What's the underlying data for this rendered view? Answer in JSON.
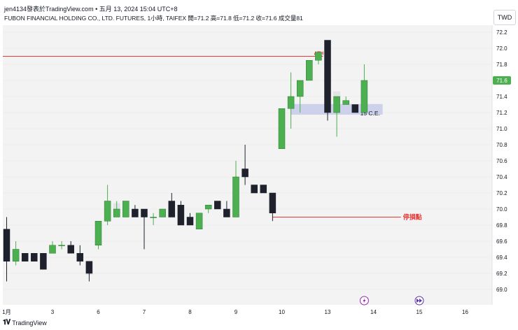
{
  "header": {
    "author_line": "jen4134發表於TradingView.com • 五月 13, 2024 15:04 UTC+8",
    "symbol_line": "FUBON FINANCIAL HOLDING CO., LTD. FUTURES, 1小時, TAIFEX  開=71.2  高=71.8  低=71.2  收=71.6  成交量81",
    "currency": "TWD"
  },
  "footer": {
    "brand": "TradingView"
  },
  "colors": {
    "up": "#4caf50",
    "down": "#1f222d",
    "volume": "#e1e3e6",
    "ath_line": "#e53935",
    "stop_line": "#e53935",
    "ce_zone": "#c5cae9",
    "bg": "#f3f3f3"
  },
  "chart_data": {
    "type": "candlestick",
    "ylim": [
      68.8,
      72.3
    ],
    "y_ticks": [
      "72.2",
      "72.0",
      "71.8",
      "71.6",
      "71.4",
      "71.2",
      "71.0",
      "70.8",
      "70.6",
      "70.4",
      "70.2",
      "70.0",
      "69.8",
      "69.6",
      "69.4",
      "69.2",
      "69.0"
    ],
    "x_labels": [
      {
        "label": "1月",
        "slot": 0
      },
      {
        "label": "3",
        "slot": 5
      },
      {
        "label": "6",
        "slot": 10
      },
      {
        "label": "7",
        "slot": 15
      },
      {
        "label": "8",
        "slot": 20
      },
      {
        "label": "9",
        "slot": 25
      },
      {
        "label": "10",
        "slot": 30
      },
      {
        "label": "13",
        "slot": 35
      },
      {
        "label": "14",
        "slot": 40
      },
      {
        "label": "15",
        "slot": 45
      },
      {
        "label": "16",
        "slot": 50
      }
    ],
    "current_price": "71.6",
    "candles": [
      {
        "o": 69.75,
        "h": 69.9,
        "l": 69.1,
        "c": 69.35
      },
      {
        "o": 69.35,
        "h": 69.6,
        "l": 69.3,
        "c": 69.5
      },
      {
        "o": 69.45,
        "h": 69.45,
        "l": 69.35,
        "c": 69.35
      },
      {
        "o": 69.45,
        "h": 69.45,
        "l": 69.35,
        "c": 69.35
      },
      {
        "o": 69.45,
        "h": 69.45,
        "l": 69.25,
        "c": 69.25
      },
      {
        "o": 69.45,
        "h": 69.6,
        "l": 69.45,
        "c": 69.55
      },
      {
        "o": 69.55,
        "h": 69.6,
        "l": 69.5,
        "c": 69.55
      },
      {
        "o": 69.55,
        "h": 69.6,
        "l": 69.45,
        "c": 69.45
      },
      {
        "o": 69.45,
        "h": 69.55,
        "l": 69.3,
        "c": 69.35
      },
      {
        "o": 69.35,
        "h": 69.35,
        "l": 69.1,
        "c": 69.2
      },
      {
        "o": 69.55,
        "h": 69.85,
        "l": 69.5,
        "c": 69.85
      },
      {
        "o": 69.85,
        "h": 70.3,
        "l": 69.8,
        "c": 70.1
      },
      {
        "o": 69.9,
        "h": 70.1,
        "l": 69.9,
        "c": 70.0
      },
      {
        "o": 69.9,
        "h": 70.1,
        "l": 69.9,
        "c": 70.1
      },
      {
        "o": 70.0,
        "h": 70.05,
        "l": 69.9,
        "c": 69.9
      },
      {
        "o": 70.0,
        "h": 70.0,
        "l": 69.5,
        "c": 69.9
      },
      {
        "o": 69.9,
        "h": 69.95,
        "l": 69.8,
        "c": 69.9
      },
      {
        "o": 69.9,
        "h": 70.0,
        "l": 69.9,
        "c": 70.0
      },
      {
        "o": 70.1,
        "h": 70.2,
        "l": 69.9,
        "c": 69.9
      },
      {
        "o": 70.05,
        "h": 70.1,
        "l": 69.8,
        "c": 69.8
      },
      {
        "o": 69.9,
        "h": 69.95,
        "l": 69.8,
        "c": 69.8
      },
      {
        "o": 69.75,
        "h": 69.95,
        "l": 69.75,
        "c": 69.95
      },
      {
        "o": 70.0,
        "h": 70.05,
        "l": 69.95,
        "c": 70.05
      },
      {
        "o": 70.1,
        "h": 70.1,
        "l": 70.0,
        "c": 70.0
      },
      {
        "o": 70.0,
        "h": 70.1,
        "l": 69.9,
        "c": 69.9
      },
      {
        "o": 69.9,
        "h": 70.6,
        "l": 69.9,
        "c": 70.4
      },
      {
        "o": 70.5,
        "h": 70.8,
        "l": 70.3,
        "c": 70.4
      },
      {
        "o": 70.3,
        "h": 70.3,
        "l": 70.2,
        "c": 70.2
      },
      {
        "o": 70.3,
        "h": 70.3,
        "l": 70.2,
        "c": 70.2
      },
      {
        "o": 70.2,
        "h": 70.2,
        "l": 69.85,
        "c": 69.95
      },
      {
        "o": 70.75,
        "h": 71.25,
        "l": 70.75,
        "c": 71.25
      },
      {
        "o": 71.25,
        "h": 71.7,
        "l": 71.0,
        "c": 71.4
      },
      {
        "o": 71.4,
        "h": 71.6,
        "l": 71.2,
        "c": 71.6
      },
      {
        "o": 71.6,
        "h": 71.85,
        "l": 71.6,
        "c": 71.85
      },
      {
        "o": 71.85,
        "h": 71.95,
        "l": 71.8,
        "c": 71.95
      },
      {
        "o": 72.1,
        "h": 72.1,
        "l": 71.1,
        "c": 71.2
      },
      {
        "o": 71.2,
        "h": 71.4,
        "l": 70.9,
        "c": 71.4
      },
      {
        "o": 71.3,
        "h": 71.4,
        "l": 71.3,
        "c": 71.35
      },
      {
        "o": 71.3,
        "h": 71.3,
        "l": 71.2,
        "c": 71.2
      },
      {
        "o": 71.2,
        "h": 71.8,
        "l": 71.2,
        "c": 71.6
      }
    ],
    "volume_profile": [
      {
        "slot": 9,
        "level": 69.25,
        "size": 0.35
      },
      {
        "slot": 12,
        "level": 70.0,
        "size": 0.4
      },
      {
        "slot": 18,
        "level": 69.95,
        "size": 0.3
      },
      {
        "slot": 27,
        "level": 70.25,
        "size": 0.25
      },
      {
        "slot": 35,
        "level": 71.6,
        "size": 0.5
      },
      {
        "slot": 36,
        "level": 71.4,
        "size": 0.3
      }
    ],
    "lines": [
      {
        "name": "ath",
        "label": "ATH",
        "y": 71.9,
        "from_slot": -1,
        "to_slot": 34.5
      },
      {
        "name": "stop",
        "label": "停損點",
        "y": 69.9,
        "from_slot": 29,
        "to_slot": 43
      }
    ],
    "zone": {
      "label": "15 C.E.",
      "y_low": 71.2,
      "y_high": 71.28,
      "from_slot": 31,
      "to_slot": 41
    },
    "markers": [
      "lightning-icon",
      "fast-forward-icon"
    ]
  }
}
